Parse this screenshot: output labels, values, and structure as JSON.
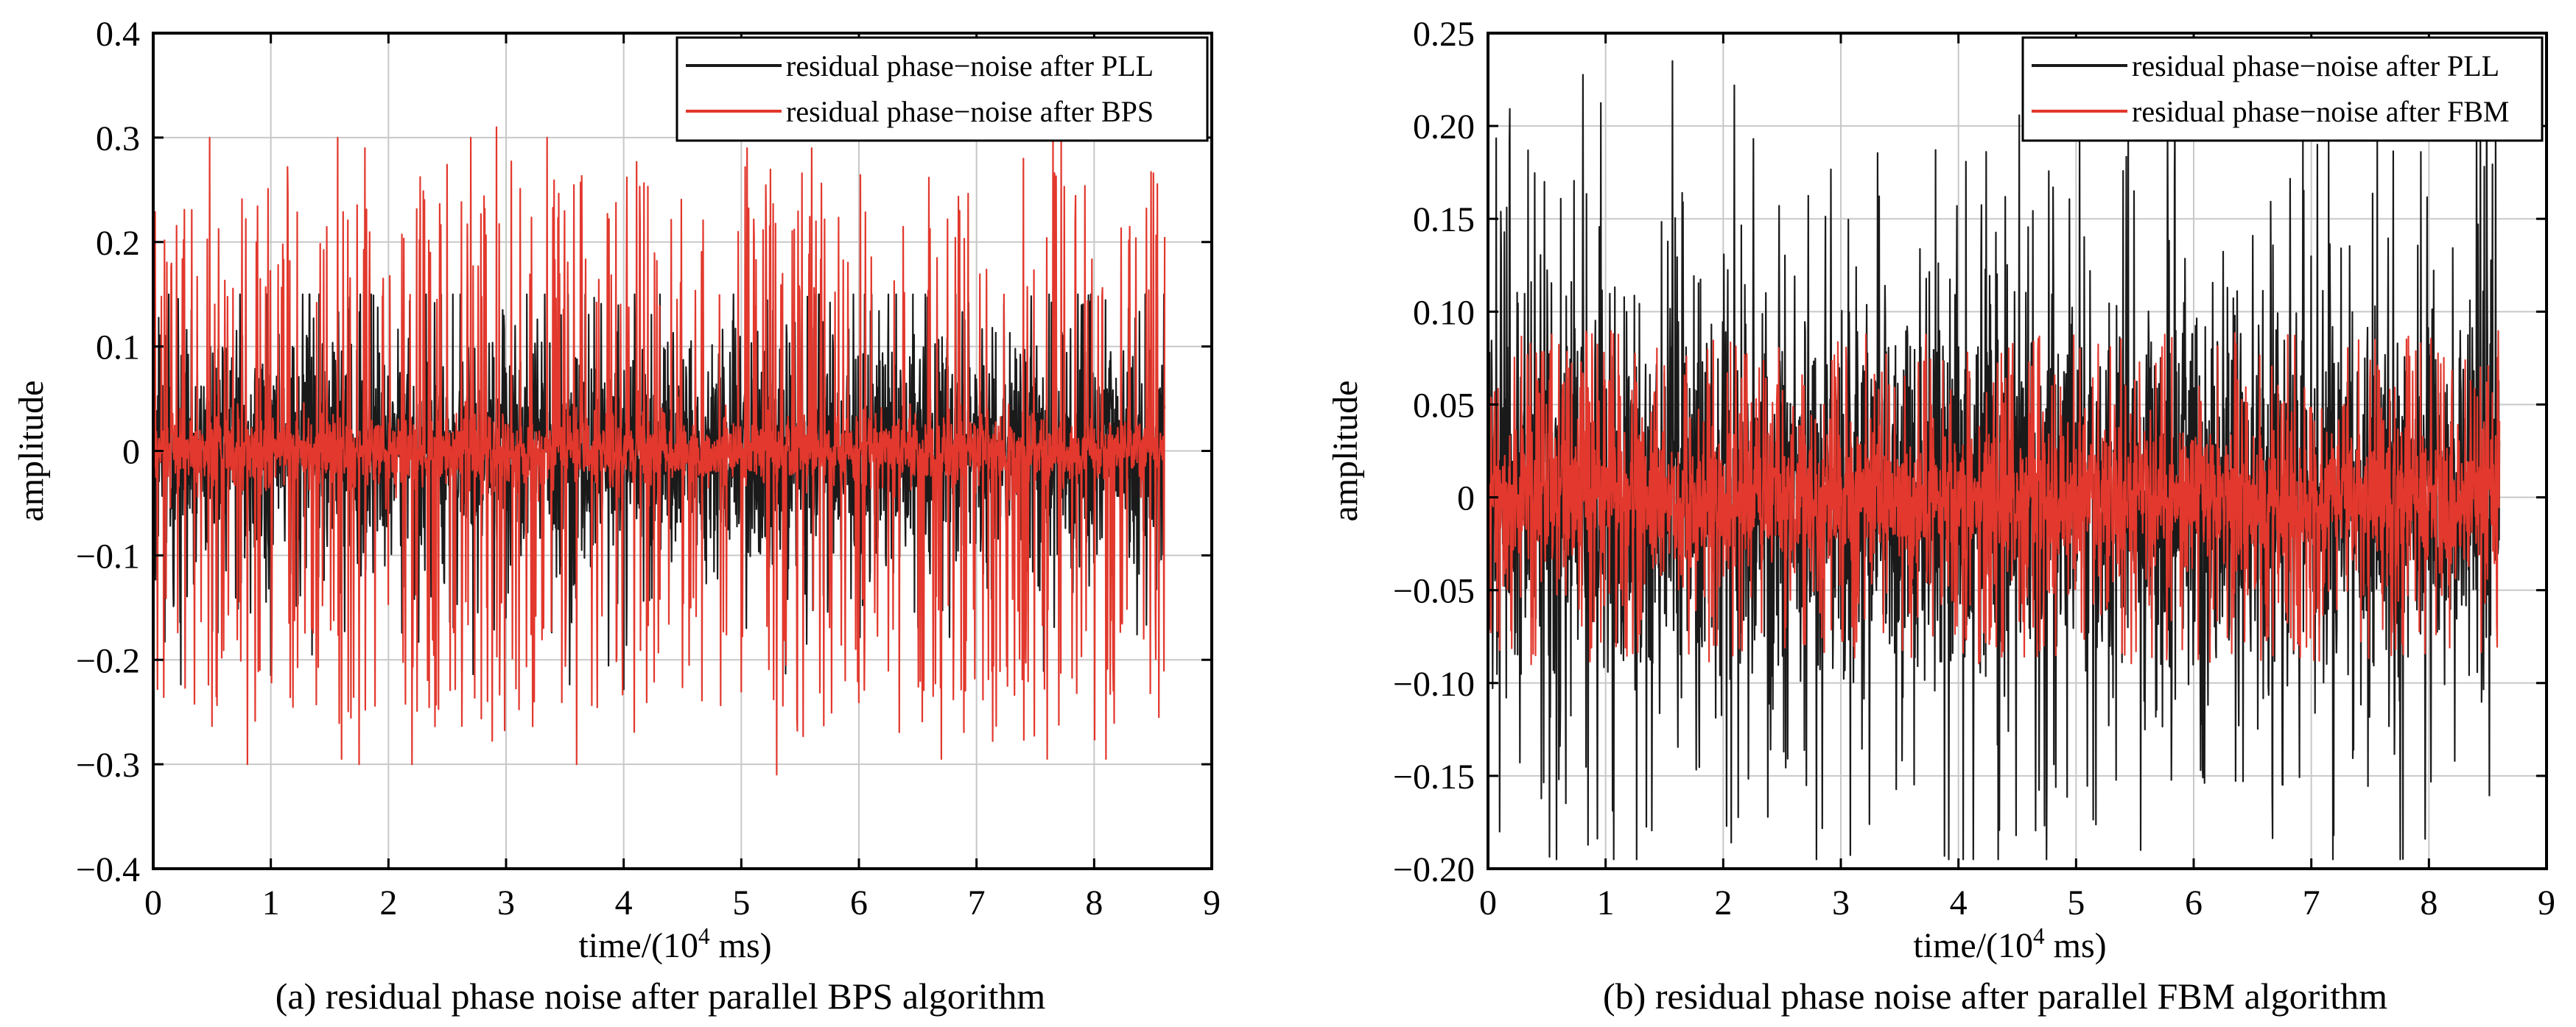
{
  "colors": {
    "pll": "#1a1a1a",
    "bps": "#e2382d",
    "fbm": "#e2382d",
    "grid": "#c8c8c8",
    "axis": "#000000"
  },
  "chart_data": [
    {
      "type": "line",
      "caption": "(a) residual phase noise after parallel BPS algorithm",
      "xlabel_prefix": "time/(10",
      "xlabel_exp": "4",
      "xlabel_suffix": " ms)",
      "ylabel": "amplitude",
      "xlim": [
        0,
        9
      ],
      "ylim": [
        -0.4,
        0.4
      ],
      "xticks": [
        0,
        1,
        2,
        3,
        4,
        5,
        6,
        7,
        8,
        9
      ],
      "xtick_labels": [
        "0",
        "1",
        "2",
        "3",
        "4",
        "5",
        "6",
        "7",
        "8",
        "9"
      ],
      "yticks": [
        -0.4,
        -0.3,
        -0.2,
        -0.1,
        0,
        0.1,
        0.2,
        0.3,
        0.4
      ],
      "ytick_labels": [
        "−0.4",
        "−0.3",
        "−0.2",
        "−0.1",
        "0",
        "0.1",
        "0.2",
        "0.3",
        "0.4"
      ],
      "grid": true,
      "legend_position": "top-right",
      "x_range_of_data": [
        0,
        8.6
      ],
      "series": [
        {
          "name": "residual phase−noise after PLL",
          "color_key": "pll",
          "envelope": {
            "typical_band": [
              -0.1,
              0.1
            ],
            "max": 0.15,
            "min": -0.23
          }
        },
        {
          "name": "residual phase−noise after BPS",
          "color_key": "bps",
          "envelope": {
            "dense_band": [
              -0.03,
              0.03
            ],
            "max": 0.3,
            "min": -0.31
          },
          "spikes": [
            {
              "x": 0.48,
              "y": 0.3
            },
            {
              "x": 1.57,
              "y": 0.3
            },
            {
              "x": 1.8,
              "y": 0.29
            },
            {
              "x": 2.7,
              "y": 0.3
            },
            {
              "x": 2.92,
              "y": 0.31
            },
            {
              "x": 3.35,
              "y": 0.3
            },
            {
              "x": 5.05,
              "y": 0.29
            },
            {
              "x": 5.6,
              "y": 0.29
            },
            {
              "x": 7.4,
              "y": 0.28
            },
            {
              "x": 7.65,
              "y": 0.3
            },
            {
              "x": 7.72,
              "y": 0.3
            },
            {
              "x": 0.8,
              "y": -0.3
            },
            {
              "x": 1.6,
              "y": -0.295
            },
            {
              "x": 1.75,
              "y": -0.3
            },
            {
              "x": 2.2,
              "y": -0.3
            },
            {
              "x": 3.6,
              "y": -0.3
            },
            {
              "x": 5.3,
              "y": -0.31
            },
            {
              "x": 6.7,
              "y": -0.295
            },
            {
              "x": 7.6,
              "y": -0.295
            },
            {
              "x": 8.1,
              "y": -0.295
            }
          ]
        }
      ]
    },
    {
      "type": "line",
      "caption": "(b) residual phase noise after parallel FBM algorithm",
      "xlabel_prefix": "time/(10",
      "xlabel_exp": "4",
      "xlabel_suffix": " ms)",
      "ylabel": "amplitude",
      "xlim": [
        0,
        9
      ],
      "ylim": [
        -0.2,
        0.25
      ],
      "xticks": [
        0,
        1,
        2,
        3,
        4,
        5,
        6,
        7,
        8,
        9
      ],
      "xtick_labels": [
        "0",
        "1",
        "2",
        "3",
        "4",
        "5",
        "6",
        "7",
        "8",
        "9"
      ],
      "yticks": [
        -0.2,
        -0.15,
        -0.1,
        -0.05,
        0,
        0.05,
        0.1,
        0.15,
        0.2,
        0.25
      ],
      "ytick_labels": [
        "−0.20",
        "−0.15",
        "−0.10",
        "−0.05",
        "0",
        "0.05",
        "0.10",
        "0.15",
        "0.20",
        "0.25"
      ],
      "grid": true,
      "legend_position": "top-right",
      "x_range_of_data": [
        0,
        8.6
      ],
      "series": [
        {
          "name": "residual phase−noise after PLL",
          "color_key": "pll",
          "envelope": {
            "typical_band": [
              -0.09,
              0.09
            ],
            "max": 0.235,
            "min": -0.195
          },
          "spikes": [
            {
              "x": 1.57,
              "y": 0.235
            },
            {
              "x": 0.48,
              "y": 0.17
            },
            {
              "x": 7.05,
              "y": 0.19
            },
            {
              "x": 4.75,
              "y": -0.195
            },
            {
              "x": 5.55,
              "y": -0.19
            },
            {
              "x": 0.1,
              "y": -0.18
            }
          ]
        },
        {
          "name": "residual phase−noise after FBM",
          "color_key": "fbm",
          "envelope": {
            "dense_band": [
              -0.035,
              0.035
            ],
            "max": 0.1,
            "min": -0.1
          }
        }
      ]
    }
  ]
}
